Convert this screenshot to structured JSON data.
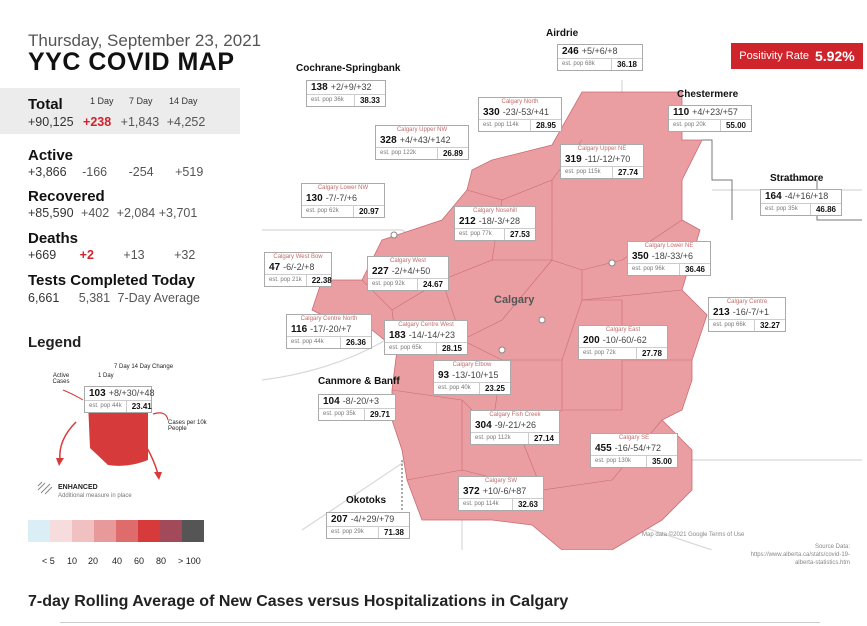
{
  "header": {
    "date": "Thursday, September 23, 2021",
    "title": "YYC COVID MAP"
  },
  "positivity": {
    "label": "Positivity Rate",
    "value": "5.92%"
  },
  "stats": {
    "col_1day": "1 Day",
    "col_7day": "7 Day",
    "col_14day": "14 Day",
    "total": {
      "label": "Total",
      "value": "+90,125",
      "d1": "+238",
      "d7": "+1,843",
      "d14": "+4,252"
    },
    "active": {
      "label": "Active",
      "value": "+3,866",
      "d1": "-166",
      "d7": "-254",
      "d14": "+519"
    },
    "recovered": {
      "label": "Recovered",
      "value": "+85,590",
      "d1": "+402",
      "d7": "+2,084",
      "d14": "+3,701"
    },
    "deaths": {
      "label": "Deaths",
      "value": "+669",
      "d1": "+2",
      "d7": "+13",
      "d14": "+32"
    },
    "tests": {
      "label": "Tests Completed Today",
      "value": "6,661",
      "avg": "5,381",
      "avg_label": "7-Day Average"
    }
  },
  "legend": {
    "title": "Legend",
    "label_1day": "1 Day",
    "label_7_14": "7 Day  14 Day Change",
    "label_active": "Active Cases",
    "label_cases_per": "Cases per 10k People",
    "sample_count": "103",
    "sample_changes": "+8/+30/+48",
    "sample_pop": "est. pop 44k",
    "sample_rate": "23.41",
    "enhanced": "ENHANCED",
    "enhanced_sub": "Additional measure in place",
    "scale_labels": [
      "< 5",
      "10",
      "20",
      "40",
      "60",
      "80",
      "> 100"
    ],
    "scale_colors": [
      "#d9eef5",
      "#f6dcdc",
      "#f1c0c0",
      "#e89a9a",
      "#df6c6c",
      "#d63a3a",
      "#a24a5a",
      "#555555"
    ]
  },
  "map": {
    "fill": "#eb9ea2",
    "regions": [
      {
        "name": "Airdrie",
        "count": "246",
        "changes": "+5/+6/+8",
        "pop": "est. pop 68k",
        "rate": "36.18",
        "sub": ""
      },
      {
        "name": "Cochrane-Springbank",
        "count": "138",
        "changes": "+2/+9/+32",
        "pop": "est. pop 36k",
        "rate": "38.33",
        "sub": ""
      },
      {
        "name": "Chestermere",
        "count": "110",
        "changes": "+4/+23/+57",
        "pop": "est. pop 20k",
        "rate": "55.00",
        "sub": ""
      },
      {
        "name": "Strathmore",
        "count": "164",
        "changes": "-4/+16/+18",
        "pop": "est. pop 35k",
        "rate": "46.86",
        "sub": ""
      },
      {
        "name": "",
        "count": "330",
        "changes": "-23/-53/+41",
        "pop": "est. pop 114k",
        "rate": "28.95",
        "sub": "Calgary North"
      },
      {
        "name": "",
        "count": "328",
        "changes": "+4/+43/+142",
        "pop": "est. pop 122k",
        "rate": "26.89",
        "sub": "Calgary Upper NW"
      },
      {
        "name": "",
        "count": "319",
        "changes": "-11/-12/+70",
        "pop": "est. pop 115k",
        "rate": "27.74",
        "sub": "Calgary Upper NE"
      },
      {
        "name": "",
        "count": "130",
        "changes": "-7/-7/+6",
        "pop": "est. pop 62k",
        "rate": "20.97",
        "sub": "Calgary Lower NW"
      },
      {
        "name": "",
        "count": "212",
        "changes": "-18/-3/+28",
        "pop": "est. pop 77k",
        "rate": "27.53",
        "sub": "Calgary Nosehill"
      },
      {
        "name": "",
        "count": "47",
        "changes": "-6/-2/+8",
        "pop": "est. pop 21k",
        "rate": "22.38",
        "sub": "Calgary West Bow"
      },
      {
        "name": "",
        "count": "227",
        "changes": "-2/+4/+50",
        "pop": "est. pop 92k",
        "rate": "24.67",
        "sub": "Calgary West"
      },
      {
        "name": "",
        "count": "350",
        "changes": "-18/-33/+6",
        "pop": "est. pop 96k",
        "rate": "36.46",
        "sub": "Calgary Lower NE"
      },
      {
        "name": "",
        "count": "213",
        "changes": "-16/-7/+1",
        "pop": "est. pop 66k",
        "rate": "32.27",
        "sub": "Calgary Centre"
      },
      {
        "name": "",
        "count": "116",
        "changes": "-17/-20/+7",
        "pop": "est. pop 44k",
        "rate": "26.36",
        "sub": "Calgary Centre North"
      },
      {
        "name": "",
        "count": "183",
        "changes": "-14/-14/+23",
        "pop": "est. pop 65k",
        "rate": "28.15",
        "sub": "Calgary Centre West"
      },
      {
        "name": "",
        "count": "200",
        "changes": "-10/-60/-62",
        "pop": "est. pop 72k",
        "rate": "27.78",
        "sub": "Calgary East"
      },
      {
        "name": "",
        "count": "93",
        "changes": "-13/-10/+15",
        "pop": "est. pop 40k",
        "rate": "23.25",
        "sub": "Calgary Elbow"
      },
      {
        "name": "Canmore & Banff",
        "count": "104",
        "changes": "-8/-20/+3",
        "pop": "est. pop 35k",
        "rate": "29.71",
        "sub": ""
      },
      {
        "name": "",
        "count": "304",
        "changes": "-9/-21/+26",
        "pop": "est. pop 112k",
        "rate": "27.14",
        "sub": "Calgary Fish Creek"
      },
      {
        "name": "",
        "count": "455",
        "changes": "-16/-54/+72",
        "pop": "est. pop 130k",
        "rate": "35.00",
        "sub": "Calgary SE"
      },
      {
        "name": "",
        "count": "372",
        "changes": "+10/-6/+87",
        "pop": "est. pop 114k",
        "rate": "32.63",
        "sub": "Calgary SW"
      },
      {
        "name": "Okotoks",
        "count": "207",
        "changes": "-4/+29/+79",
        "pop": "est. pop 29k",
        "rate": "71.38",
        "sub": ""
      }
    ],
    "city_label": "Calgary",
    "attribution": "Map data ©2021 Google   Terms of Use",
    "source_title": "Source Data:",
    "source_url": "https://www.alberta.ca/stats/covid-19-alberta-statistics.htm"
  },
  "footer": {
    "title": "7-day Rolling Average of New Cases versus Hospitalizations in Calgary"
  }
}
